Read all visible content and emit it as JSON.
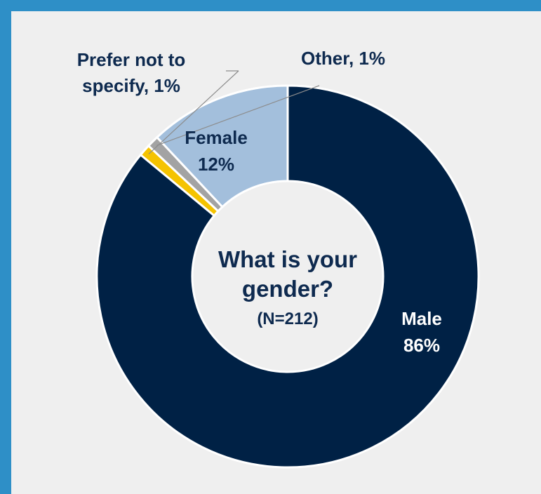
{
  "chart_data": {
    "type": "pie",
    "variant": "donut",
    "title_lines": [
      "What is your",
      "gender?"
    ],
    "subtitle": "(N=212)",
    "slices": [
      {
        "label": "Male",
        "value": 86,
        "display": "86%",
        "color": "#002145"
      },
      {
        "label": "Prefer not to specify",
        "value": 1,
        "display": "1%",
        "color": "#f5c300"
      },
      {
        "label": "Other",
        "value": 1,
        "display": "1%",
        "color": "#a3a3a3"
      },
      {
        "label": "Female",
        "value": 12,
        "display": "12%",
        "color": "#a3bfdc"
      }
    ],
    "outside_labels": {
      "prefer_line1": "Prefer not to",
      "prefer_line2": "specify, 1%",
      "other": "Other, 1%"
    }
  },
  "colors": {
    "frame_border": "#2e8fc7",
    "background": "#efefef",
    "text": "#0e2a4f"
  }
}
